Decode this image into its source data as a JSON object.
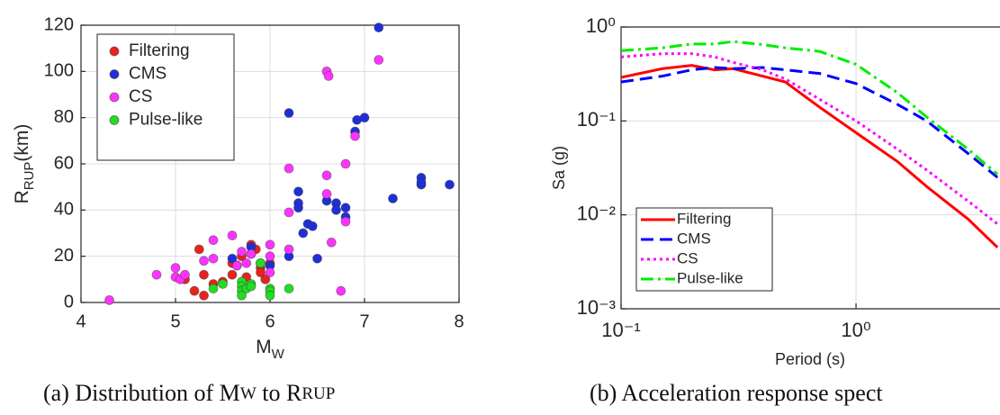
{
  "chart_data": [
    {
      "type": "scatter",
      "xlabel": [
        "M",
        "W"
      ],
      "ylabel": [
        "R",
        "RUP",
        "(km)"
      ],
      "caption": [
        "(a)  Distribution of M",
        "W",
        " to R",
        "RUP"
      ],
      "xlim": [
        4,
        8
      ],
      "xticks": [
        4,
        5,
        6,
        7,
        8
      ],
      "ylim": [
        0,
        120
      ],
      "yticks": [
        0,
        20,
        40,
        60,
        80,
        100,
        120
      ],
      "grid": true,
      "legend": "upper-left",
      "series": [
        {
          "name": "Filtering",
          "color": "#e8221d",
          "x": [
            5.2,
            5.3,
            5.25,
            5.3,
            5.1,
            5.4,
            5.5,
            5.6,
            5.65,
            5.7,
            5.8,
            5.85,
            5.8,
            5.9,
            5.9,
            6.0,
            5.75,
            5.6,
            5.95
          ],
          "values": [
            5,
            3,
            23,
            12,
            10,
            8,
            9,
            17,
            16,
            20,
            25,
            23,
            21,
            15,
            13,
            17,
            11,
            12,
            10
          ]
        },
        {
          "name": "CMS",
          "color": "#1f2fd8",
          "x": [
            5.6,
            5.8,
            6.2,
            6.2,
            6.3,
            6.3,
            6.3,
            6.35,
            6.4,
            6.45,
            6.5,
            6.6,
            6.7,
            6.7,
            6.8,
            6.8,
            6.9,
            6.92,
            7.0,
            7.15,
            7.3,
            7.6,
            7.6,
            7.6,
            7.9,
            6.0
          ],
          "values": [
            19,
            24,
            82,
            20,
            48,
            43,
            41,
            30,
            34,
            33,
            19,
            44,
            43,
            40,
            41,
            37,
            74,
            79,
            80,
            119,
            45,
            54,
            51,
            52,
            51,
            16
          ]
        },
        {
          "name": "CS",
          "color": "#ff33ff",
          "x": [
            4.3,
            4.8,
            5.0,
            5.0,
            5.05,
            5.1,
            5.3,
            5.4,
            5.4,
            5.6,
            5.65,
            5.7,
            5.75,
            5.8,
            6.0,
            6.0,
            6.0,
            6.2,
            6.2,
            6.2,
            6.6,
            6.62,
            6.6,
            6.6,
            6.65,
            6.75,
            6.8,
            6.8,
            6.9,
            7.15,
            5.9
          ],
          "values": [
            1,
            12,
            15,
            11,
            10,
            12,
            18,
            27,
            19,
            29,
            16,
            22,
            17,
            21,
            25,
            20,
            13,
            58,
            39,
            23,
            100,
            98,
            55,
            47,
            26,
            5,
            60,
            35,
            72,
            105,
            17
          ]
        },
        {
          "name": "Pulse-like",
          "color": "#22dd22",
          "x": [
            5.4,
            5.5,
            5.7,
            5.7,
            5.7,
            5.7,
            5.75,
            5.8,
            5.8,
            5.9,
            6.0,
            6.0,
            6.0,
            6.2
          ],
          "values": [
            6,
            8,
            9,
            7,
            5,
            3,
            6,
            8,
            7,
            17,
            6,
            5,
            3,
            6
          ]
        }
      ]
    },
    {
      "type": "line",
      "log_x": true,
      "log_y": true,
      "xlabel": "Period (s)",
      "ylabel": "Sa (g)",
      "caption": [
        "(b)  Acceleration response spect"
      ],
      "xlim": [
        0.1,
        4.1
      ],
      "xticks": [
        {
          "value": 0.1,
          "label": "10⁻¹"
        },
        {
          "value": 1,
          "label": "10⁰"
        }
      ],
      "ylim": [
        0.001,
        1
      ],
      "yticks": [
        {
          "value": 0.001,
          "label": "10⁻³"
        },
        {
          "value": 0.01,
          "label": "10⁻²"
        },
        {
          "value": 0.1,
          "label": "10⁻¹"
        },
        {
          "value": 1,
          "label": "10⁰"
        }
      ],
      "grid": true,
      "legend": "lower-left",
      "x": [
        0.1,
        0.15,
        0.2,
        0.25,
        0.3,
        0.4,
        0.5,
        0.7,
        1.0,
        1.5,
        2,
        3,
        4
      ],
      "series": [
        {
          "name": "Filtering",
          "color": "#ff0000",
          "linestyle": "solid",
          "values": [
            0.29,
            0.36,
            0.39,
            0.35,
            0.36,
            0.3,
            0.26,
            0.14,
            0.075,
            0.037,
            0.02,
            0.009,
            0.0045
          ]
        },
        {
          "name": "CMS",
          "color": "#0000ff",
          "linestyle": "dashed",
          "values": [
            0.26,
            0.3,
            0.35,
            0.37,
            0.36,
            0.37,
            0.35,
            0.32,
            0.25,
            0.15,
            0.1,
            0.045,
            0.025
          ]
        },
        {
          "name": "CS",
          "color": "#ff00ff",
          "linestyle": "dotted",
          "values": [
            0.48,
            0.52,
            0.52,
            0.48,
            0.42,
            0.35,
            0.28,
            0.17,
            0.1,
            0.05,
            0.03,
            0.014,
            0.008
          ]
        },
        {
          "name": "Pulse-like",
          "color": "#00ee00",
          "linestyle": "dashdot",
          "values": [
            0.56,
            0.6,
            0.66,
            0.66,
            0.7,
            0.65,
            0.6,
            0.55,
            0.4,
            0.2,
            0.11,
            0.05,
            0.027
          ]
        }
      ]
    }
  ]
}
